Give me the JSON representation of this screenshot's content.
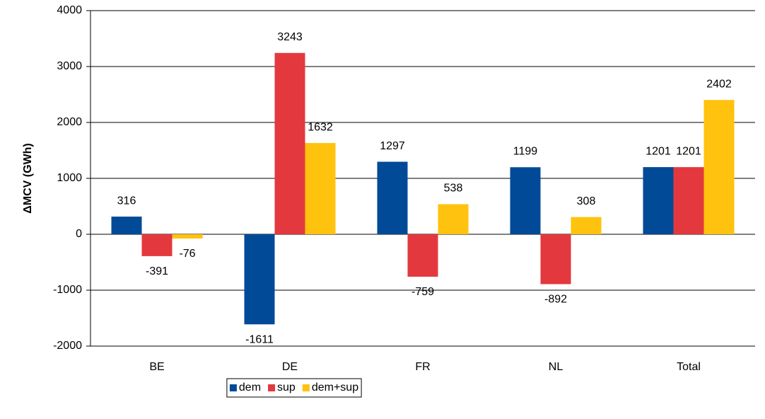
{
  "chart_data": {
    "type": "bar",
    "y_label": "ΔMCV (GWh)",
    "categories": [
      "BE",
      "DE",
      "FR",
      "NL",
      "Total"
    ],
    "series": [
      {
        "name": "dem",
        "color": "#004a97",
        "values": [
          316,
          -1611,
          1297,
          1199,
          1201
        ]
      },
      {
        "name": "sup",
        "color": "#e3393e",
        "values": [
          -391,
          3243,
          -759,
          -892,
          1201
        ]
      },
      {
        "name": "dem+sup",
        "color": "#ffc20e",
        "values": [
          -76,
          1632,
          538,
          308,
          2402
        ]
      }
    ],
    "ylim": [
      -2000,
      4000
    ],
    "yticks": [
      -2000,
      -1000,
      0,
      1000,
      2000,
      3000,
      4000
    ],
    "grid": true,
    "legend": "bottom",
    "data_labels": true
  }
}
